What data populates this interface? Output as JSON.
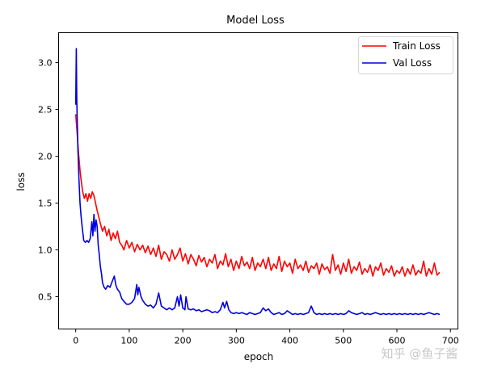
{
  "chart_data": {
    "type": "line",
    "title": "Model Loss",
    "xlabel": "epoch",
    "ylabel": "loss",
    "xlim": [
      -32,
      714
    ],
    "ylim": [
      0.155,
      3.32
    ],
    "xticks": [
      0,
      100,
      200,
      300,
      400,
      500,
      600,
      700
    ],
    "xtick_labels": [
      "0",
      "100",
      "200",
      "300",
      "400",
      "500",
      "600",
      "700"
    ],
    "yticks": [
      0.5,
      1.0,
      1.5,
      2.0,
      2.5,
      3.0
    ],
    "ytick_labels": [
      "0.5",
      "1.0",
      "1.5",
      "2.0",
      "2.5",
      "3.0"
    ],
    "grid": false,
    "legend_position": "top-right",
    "series": [
      {
        "name": "Train Loss",
        "color": "#ff0000",
        "x": [
          0,
          2,
          5,
          8,
          10,
          13,
          16,
          19,
          22,
          25,
          28,
          31,
          34,
          37,
          40,
          43,
          46,
          50,
          54,
          58,
          62,
          66,
          70,
          74,
          78,
          82,
          86,
          90,
          95,
          100,
          105,
          110,
          115,
          120,
          125,
          130,
          135,
          140,
          145,
          150,
          155,
          160,
          165,
          170,
          175,
          180,
          185,
          190,
          195,
          200,
          205,
          210,
          215,
          220,
          225,
          230,
          235,
          240,
          245,
          250,
          255,
          260,
          265,
          270,
          275,
          280,
          285,
          290,
          295,
          300,
          305,
          310,
          315,
          320,
          325,
          330,
          335,
          340,
          345,
          350,
          355,
          360,
          365,
          370,
          375,
          380,
          385,
          390,
          395,
          400,
          405,
          410,
          415,
          420,
          425,
          430,
          435,
          440,
          445,
          450,
          455,
          460,
          465,
          470,
          475,
          480,
          485,
          490,
          495,
          500,
          505,
          510,
          515,
          520,
          525,
          530,
          535,
          540,
          545,
          550,
          555,
          560,
          565,
          570,
          575,
          580,
          585,
          590,
          595,
          600,
          605,
          610,
          615,
          620,
          625,
          630,
          635,
          640,
          645,
          650,
          655,
          660,
          665,
          670,
          675,
          680
        ],
        "y": [
          2.45,
          2.3,
          2.05,
          1.85,
          1.75,
          1.62,
          1.55,
          1.6,
          1.52,
          1.6,
          1.55,
          1.62,
          1.58,
          1.5,
          1.42,
          1.35,
          1.28,
          1.2,
          1.25,
          1.15,
          1.22,
          1.1,
          1.18,
          1.12,
          1.2,
          1.08,
          1.05,
          1.0,
          1.1,
          1.02,
          1.08,
          0.98,
          1.06,
          1.0,
          1.05,
          0.97,
          1.04,
          0.95,
          1.02,
          0.93,
          1.05,
          0.9,
          0.98,
          0.95,
          0.88,
          1.0,
          0.9,
          0.95,
          1.02,
          0.88,
          0.96,
          0.85,
          0.95,
          0.9,
          0.83,
          0.94,
          0.87,
          0.92,
          0.82,
          0.9,
          0.86,
          0.95,
          0.8,
          0.88,
          0.84,
          0.96,
          0.82,
          0.9,
          0.78,
          0.88,
          0.8,
          0.93,
          0.83,
          0.87,
          0.8,
          0.92,
          0.78,
          0.86,
          0.82,
          0.9,
          0.8,
          0.92,
          0.78,
          0.85,
          0.8,
          0.93,
          0.77,
          0.88,
          0.82,
          0.86,
          0.75,
          0.9,
          0.8,
          0.84,
          0.78,
          0.88,
          0.76,
          0.83,
          0.8,
          0.86,
          0.74,
          0.85,
          0.79,
          0.82,
          0.75,
          0.95,
          0.78,
          0.84,
          0.74,
          0.86,
          0.77,
          0.9,
          0.75,
          0.82,
          0.78,
          0.87,
          0.74,
          0.8,
          0.76,
          0.84,
          0.72,
          0.82,
          0.78,
          0.86,
          0.73,
          0.8,
          0.76,
          0.83,
          0.72,
          0.78,
          0.75,
          0.82,
          0.72,
          0.8,
          0.74,
          0.84,
          0.73,
          0.78,
          0.75,
          0.88,
          0.72,
          0.8,
          0.74,
          0.86,
          0.73,
          0.76
        ]
      },
      {
        "name": "Val Loss",
        "color": "#0000e0",
        "x": [
          0,
          1,
          2,
          4,
          6,
          8,
          10,
          12,
          15,
          18,
          21,
          24,
          27,
          30,
          32,
          34,
          36,
          38,
          40,
          42,
          44,
          46,
          48,
          50,
          53,
          56,
          60,
          64,
          68,
          72,
          75,
          78,
          82,
          86,
          90,
          95,
          100,
          105,
          110,
          114,
          116,
          118,
          122,
          125,
          130,
          135,
          140,
          145,
          150,
          155,
          160,
          165,
          170,
          175,
          180,
          185,
          190,
          193,
          196,
          200,
          204,
          206,
          210,
          215,
          220,
          225,
          230,
          235,
          240,
          245,
          250,
          255,
          260,
          265,
          270,
          275,
          278,
          282,
          286,
          290,
          295,
          300,
          305,
          310,
          315,
          320,
          325,
          330,
          335,
          340,
          345,
          350,
          355,
          360,
          365,
          370,
          375,
          380,
          385,
          390,
          395,
          400,
          405,
          410,
          415,
          420,
          425,
          430,
          435,
          440,
          445,
          450,
          455,
          460,
          465,
          470,
          475,
          480,
          485,
          490,
          495,
          500,
          505,
          510,
          515,
          520,
          525,
          530,
          535,
          540,
          545,
          550,
          555,
          560,
          565,
          570,
          575,
          580,
          585,
          590,
          595,
          600,
          605,
          610,
          615,
          620,
          625,
          630,
          635,
          640,
          645,
          650,
          655,
          660,
          665,
          670,
          675,
          680
        ],
        "y": [
          2.55,
          3.15,
          2.6,
          2.1,
          1.75,
          1.5,
          1.36,
          1.25,
          1.1,
          1.08,
          1.1,
          1.08,
          1.12,
          1.3,
          1.15,
          1.38,
          1.2,
          1.32,
          1.25,
          1.05,
          0.95,
          0.82,
          0.75,
          0.65,
          0.6,
          0.58,
          0.62,
          0.6,
          0.66,
          0.72,
          0.62,
          0.58,
          0.55,
          0.48,
          0.45,
          0.42,
          0.42,
          0.44,
          0.48,
          0.63,
          0.52,
          0.6,
          0.5,
          0.46,
          0.42,
          0.4,
          0.41,
          0.38,
          0.42,
          0.54,
          0.4,
          0.38,
          0.36,
          0.38,
          0.36,
          0.38,
          0.5,
          0.4,
          0.52,
          0.38,
          0.36,
          0.5,
          0.37,
          0.36,
          0.37,
          0.35,
          0.36,
          0.34,
          0.35,
          0.36,
          0.35,
          0.33,
          0.34,
          0.33,
          0.36,
          0.44,
          0.38,
          0.45,
          0.36,
          0.33,
          0.32,
          0.33,
          0.32,
          0.33,
          0.32,
          0.31,
          0.33,
          0.32,
          0.31,
          0.32,
          0.33,
          0.38,
          0.35,
          0.37,
          0.33,
          0.31,
          0.32,
          0.33,
          0.31,
          0.32,
          0.35,
          0.33,
          0.31,
          0.32,
          0.31,
          0.32,
          0.31,
          0.32,
          0.33,
          0.4,
          0.33,
          0.31,
          0.32,
          0.31,
          0.32,
          0.31,
          0.32,
          0.31,
          0.32,
          0.31,
          0.32,
          0.31,
          0.32,
          0.35,
          0.33,
          0.32,
          0.31,
          0.32,
          0.33,
          0.31,
          0.32,
          0.31,
          0.32,
          0.33,
          0.32,
          0.31,
          0.32,
          0.31,
          0.32,
          0.31,
          0.32,
          0.31,
          0.32,
          0.31,
          0.32,
          0.31,
          0.32,
          0.31,
          0.32,
          0.31,
          0.32,
          0.31,
          0.32,
          0.33,
          0.32,
          0.31,
          0.32,
          0.31
        ]
      }
    ]
  },
  "watermark": "知乎 @鱼子酱"
}
